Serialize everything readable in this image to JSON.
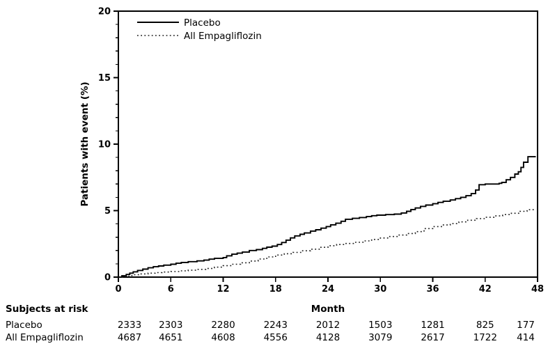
{
  "colors": {
    "background": "#ffffff",
    "axis": "#000000",
    "placebo_line": "#000000",
    "empagliflozin_line": "#1a1a1a"
  },
  "chart_data": {
    "type": "line",
    "subtype": "kaplan-meier-step",
    "title": "",
    "xlabel": "Month",
    "ylabel": "Patients with event (%)",
    "xlim": [
      0,
      48
    ],
    "ylim": [
      0,
      20
    ],
    "x_ticks": [
      0,
      6,
      12,
      18,
      24,
      30,
      36,
      42,
      48
    ],
    "y_ticks": [
      0,
      5,
      10,
      15,
      20
    ],
    "y_minor_step": 1,
    "grid": false,
    "legend_position": "top-left-inside",
    "series": [
      {
        "name": "Placebo",
        "style": "solid",
        "points": [
          [
            0,
            0
          ],
          [
            0.4,
            0.1
          ],
          [
            0.9,
            0.2
          ],
          [
            1.3,
            0.3
          ],
          [
            1.7,
            0.4
          ],
          [
            2.2,
            0.5
          ],
          [
            2.8,
            0.6
          ],
          [
            3.4,
            0.7
          ],
          [
            4,
            0.78
          ],
          [
            4.6,
            0.84
          ],
          [
            5.2,
            0.9
          ],
          [
            6,
            0.97
          ],
          [
            6.6,
            1.04
          ],
          [
            7.2,
            1.1
          ],
          [
            8,
            1.16
          ],
          [
            9,
            1.22
          ],
          [
            9.8,
            1.28
          ],
          [
            10.4,
            1.35
          ],
          [
            11,
            1.41
          ],
          [
            12,
            1.47
          ],
          [
            12.4,
            1.6
          ],
          [
            13,
            1.72
          ],
          [
            13.6,
            1.8
          ],
          [
            14.2,
            1.88
          ],
          [
            15,
            2.0
          ],
          [
            15.8,
            2.07
          ],
          [
            16.5,
            2.16
          ],
          [
            17,
            2.25
          ],
          [
            17.6,
            2.33
          ],
          [
            18.2,
            2.45
          ],
          [
            18.7,
            2.6
          ],
          [
            19.2,
            2.78
          ],
          [
            19.7,
            2.95
          ],
          [
            20.2,
            3.1
          ],
          [
            20.8,
            3.22
          ],
          [
            21.3,
            3.32
          ],
          [
            22,
            3.46
          ],
          [
            22.6,
            3.56
          ],
          [
            23.2,
            3.68
          ],
          [
            23.8,
            3.8
          ],
          [
            24.3,
            3.93
          ],
          [
            24.9,
            4.05
          ],
          [
            25.5,
            4.2
          ],
          [
            26,
            4.35
          ],
          [
            26.8,
            4.42
          ],
          [
            27.6,
            4.48
          ],
          [
            28.4,
            4.55
          ],
          [
            29,
            4.62
          ],
          [
            29.6,
            4.66
          ],
          [
            30.6,
            4.7
          ],
          [
            31.6,
            4.74
          ],
          [
            32.4,
            4.82
          ],
          [
            33,
            4.95
          ],
          [
            33.5,
            5.08
          ],
          [
            34,
            5.2
          ],
          [
            34.6,
            5.32
          ],
          [
            35.2,
            5.42
          ],
          [
            36,
            5.52
          ],
          [
            36.6,
            5.62
          ],
          [
            37.2,
            5.7
          ],
          [
            38,
            5.8
          ],
          [
            38.6,
            5.9
          ],
          [
            39.2,
            6.0
          ],
          [
            39.8,
            6.12
          ],
          [
            40.4,
            6.28
          ],
          [
            40.9,
            6.55
          ],
          [
            41.3,
            6.95
          ],
          [
            42,
            7.0
          ],
          [
            43.6,
            7.05
          ],
          [
            43.9,
            7.12
          ],
          [
            44.4,
            7.32
          ],
          [
            44.9,
            7.5
          ],
          [
            45.4,
            7.75
          ],
          [
            45.8,
            7.92
          ],
          [
            46.1,
            8.25
          ],
          [
            46.4,
            8.64
          ],
          [
            46.9,
            9.05
          ],
          [
            47.8,
            9.05
          ]
        ]
      },
      {
        "name": "All Empagliflozin",
        "style": "dotted",
        "points": [
          [
            0,
            0
          ],
          [
            0.6,
            0.06
          ],
          [
            1.2,
            0.12
          ],
          [
            1.8,
            0.18
          ],
          [
            2.6,
            0.24
          ],
          [
            3.4,
            0.3
          ],
          [
            4.2,
            0.34
          ],
          [
            5,
            0.38
          ],
          [
            6,
            0.42
          ],
          [
            7,
            0.47
          ],
          [
            8,
            0.52
          ],
          [
            9,
            0.58
          ],
          [
            10,
            0.65
          ],
          [
            11,
            0.75
          ],
          [
            12,
            0.86
          ],
          [
            13,
            0.97
          ],
          [
            14,
            1.08
          ],
          [
            15,
            1.21
          ],
          [
            16,
            1.36
          ],
          [
            17,
            1.52
          ],
          [
            18,
            1.66
          ],
          [
            19,
            1.76
          ],
          [
            20,
            1.86
          ],
          [
            21,
            1.98
          ],
          [
            22,
            2.1
          ],
          [
            23,
            2.24
          ],
          [
            24,
            2.36
          ],
          [
            25,
            2.45
          ],
          [
            26,
            2.53
          ],
          [
            27,
            2.62
          ],
          [
            28,
            2.72
          ],
          [
            29,
            2.83
          ],
          [
            30,
            2.94
          ],
          [
            31,
            3.05
          ],
          [
            32,
            3.16
          ],
          [
            33,
            3.28
          ],
          [
            34,
            3.42
          ],
          [
            35,
            3.65
          ],
          [
            36,
            3.8
          ],
          [
            37,
            3.92
          ],
          [
            38,
            4.02
          ],
          [
            39,
            4.15
          ],
          [
            40,
            4.28
          ],
          [
            41,
            4.4
          ],
          [
            42,
            4.5
          ],
          [
            43,
            4.6
          ],
          [
            44,
            4.7
          ],
          [
            45,
            4.8
          ],
          [
            46,
            4.95
          ],
          [
            46.8,
            5.07
          ],
          [
            47.6,
            5.15
          ]
        ]
      }
    ]
  },
  "risk_table": {
    "header": "Subjects at risk",
    "months": [
      0,
      6,
      12,
      18,
      24,
      30,
      36,
      42,
      48
    ],
    "rows": [
      {
        "label": "Placebo",
        "values": [
          "2333",
          "2303",
          "2280",
          "2243",
          "2012",
          "1503",
          "1281",
          "825",
          "177"
        ]
      },
      {
        "label": "All Empagliflozin",
        "values": [
          "4687",
          "4651",
          "4608",
          "4556",
          "4128",
          "3079",
          "2617",
          "1722",
          "414"
        ]
      }
    ]
  }
}
